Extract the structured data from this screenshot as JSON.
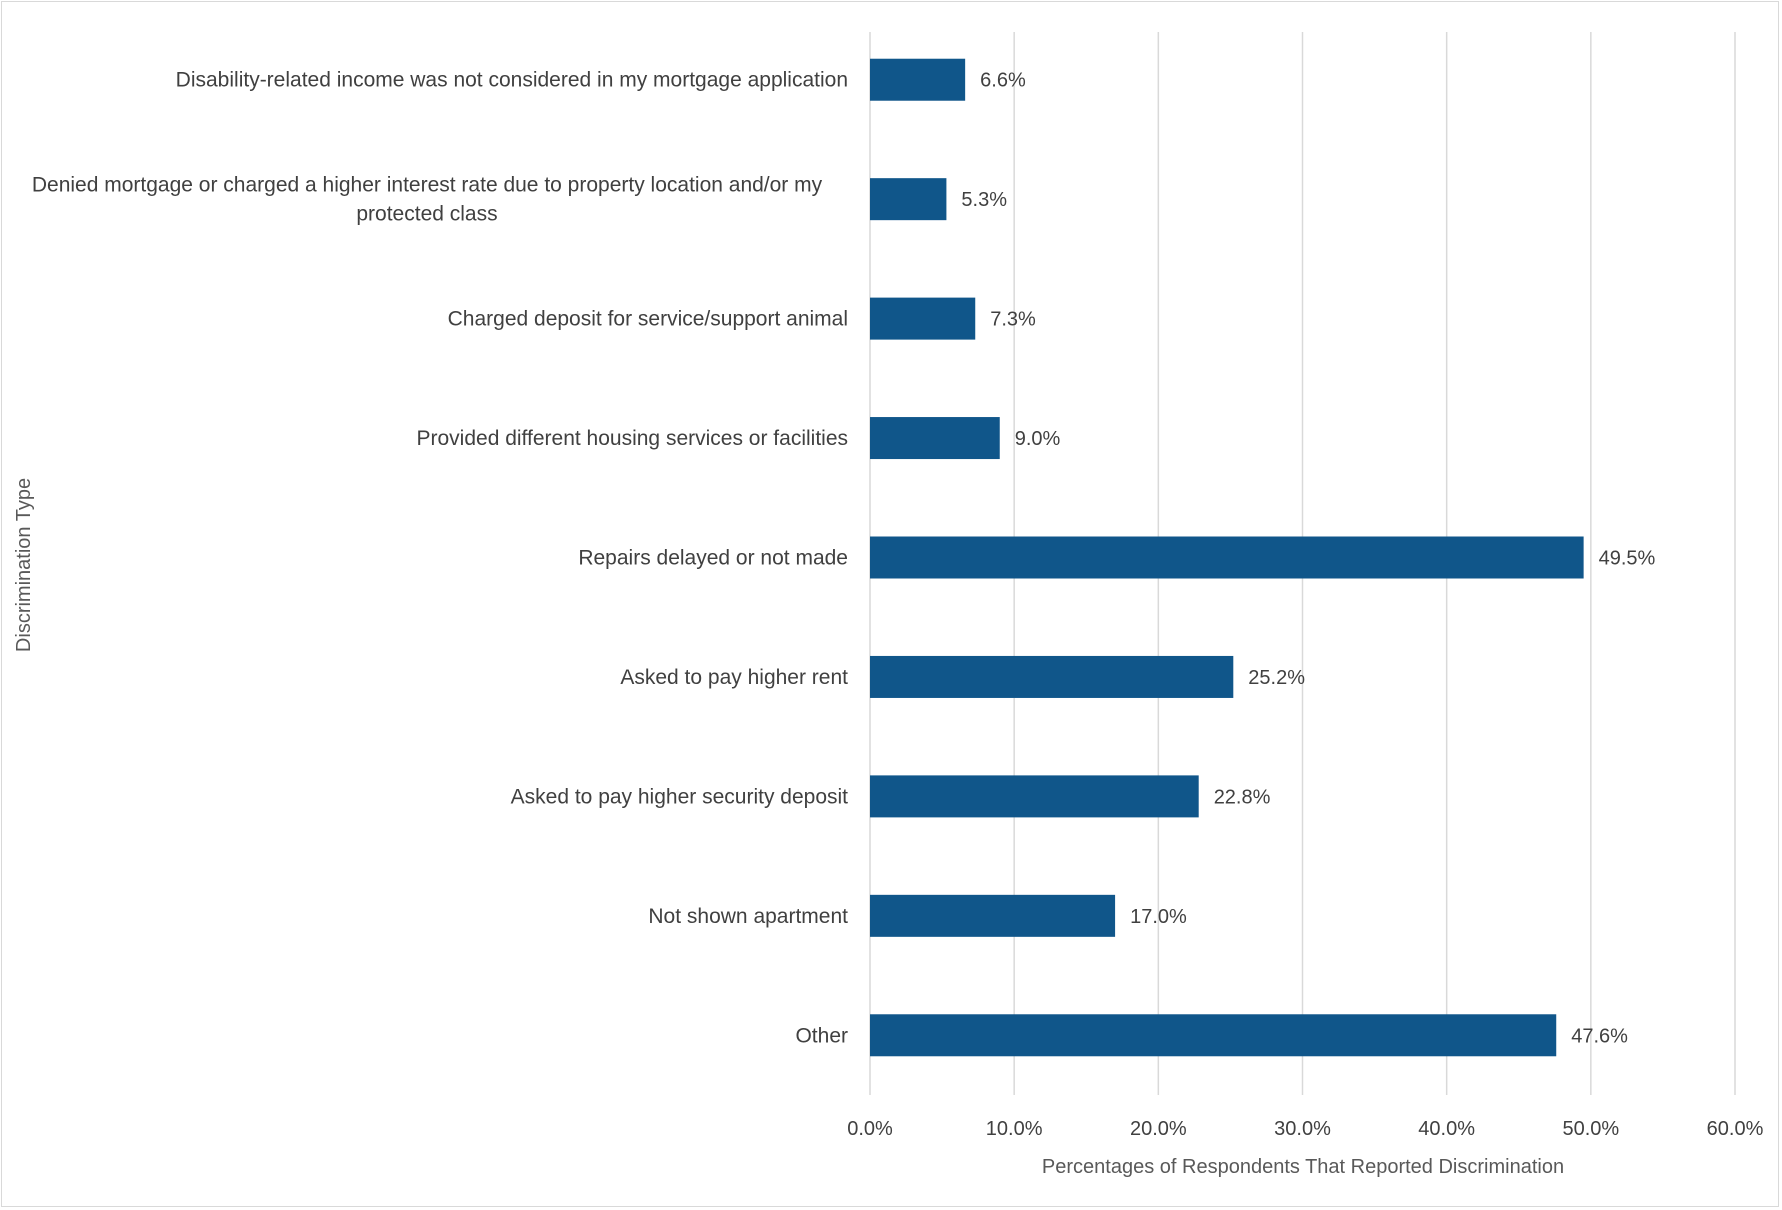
{
  "chart_data": {
    "type": "bar",
    "orientation": "horizontal",
    "title": "",
    "xlabel": "Percentages of Respondents That Reported Discrimination",
    "ylabel": "Discrimination Type",
    "xlim": [
      0,
      60
    ],
    "x_ticks": [
      0,
      10,
      20,
      30,
      40,
      50,
      60
    ],
    "x_tick_labels": [
      "0.0%",
      "10.0%",
      "20.0%",
      "30.0%",
      "40.0%",
      "50.0%",
      "60.0%"
    ],
    "grid": "vertical",
    "legend": "none",
    "bar_color": "#10568a",
    "categories": [
      "Disability-related income was not considered in my mortgage application",
      "Denied mortgage or charged a higher interest rate due to property location and/or my protected class",
      "Charged deposit for service/support animal",
      "Provided different housing services or facilities",
      "Repairs delayed or not made",
      "Asked to pay higher rent",
      "Asked to pay higher security deposit",
      "Not shown apartment",
      "Other"
    ],
    "category_lines": [
      [
        "Disability-related income was not considered in my mortgage application"
      ],
      [
        "Denied mortgage or charged a higher interest rate due to property location and/or my",
        "protected class"
      ],
      [
        "Charged deposit for service/support animal"
      ],
      [
        "Provided different housing services or facilities"
      ],
      [
        "Repairs delayed or not made"
      ],
      [
        "Asked to pay higher rent"
      ],
      [
        "Asked to pay higher security deposit"
      ],
      [
        "Not shown apartment"
      ],
      [
        "Other"
      ]
    ],
    "values": [
      6.6,
      5.3,
      7.3,
      9.0,
      49.5,
      25.2,
      22.8,
      17.0,
      47.6
    ],
    "data_labels": [
      "6.6%",
      "5.3%",
      "7.3%",
      "9.0%",
      "49.5%",
      "25.2%",
      "22.8%",
      "17.0%",
      "47.6%"
    ]
  }
}
